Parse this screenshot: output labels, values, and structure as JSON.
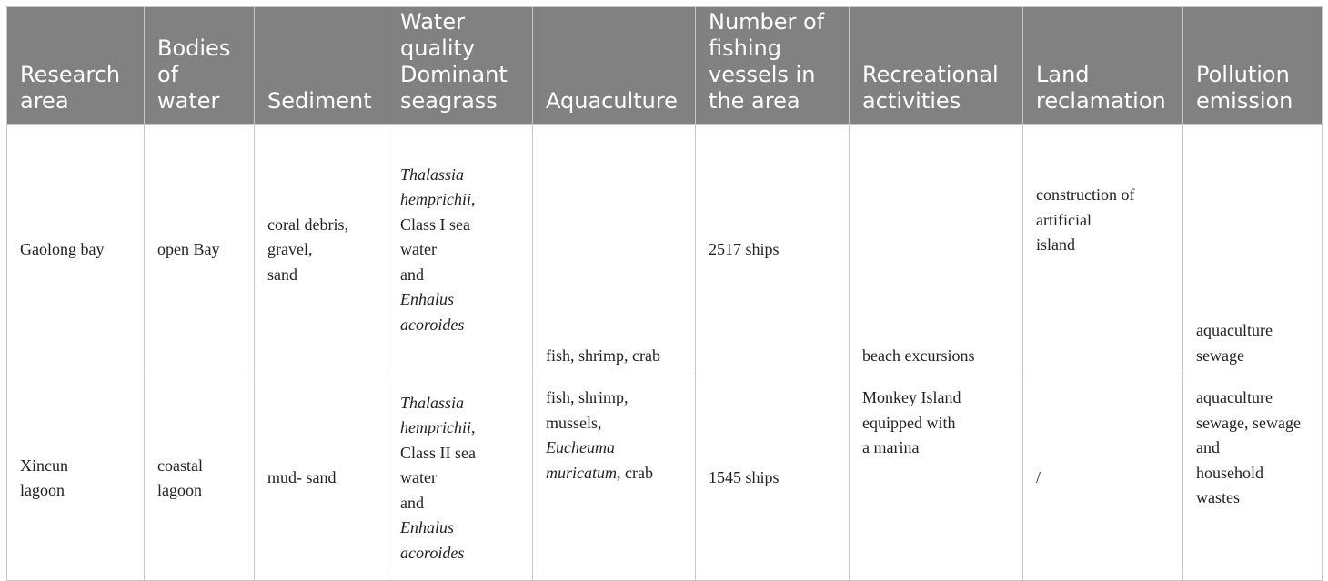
{
  "headers": [
    [
      "Research",
      "area"
    ],
    [
      "Bodies",
      "of",
      "water"
    ],
    [
      "Sediment"
    ],
    [
      "Water",
      "quality",
      "Dominant",
      "seagrass"
    ],
    [
      "Aquaculture"
    ],
    [
      "Number of",
      "fishing",
      "vessels in",
      "the area"
    ],
    [
      "Recreational",
      "activities"
    ],
    [
      "Land",
      "reclamation"
    ],
    [
      "Pollution",
      "emission"
    ]
  ],
  "rows": [
    {
      "research_area": [
        "Gaolong bay"
      ],
      "bodies_of_water": [
        "open Bay"
      ],
      "sediment": [
        "coral debris,",
        "gravel,",
        "sand"
      ],
      "seagrass": {
        "species1": [
          "Thalassia",
          "hemprichii"
        ],
        "species1_suffix": ",",
        "middle": [
          "Class I sea",
          "water",
          "and"
        ],
        "species2": [
          "Enhalus",
          "acoroides"
        ]
      },
      "aquaculture": [
        "fish, shrimp, crab"
      ],
      "vessels": [
        "2517 ships"
      ],
      "recreation": [
        "beach excursions"
      ],
      "reclamation": [
        "construction of",
        "artificial",
        "island"
      ],
      "pollution": [
        "aquaculture",
        "sewage"
      ]
    },
    {
      "research_area": [
        "Xincun",
        "lagoon"
      ],
      "bodies_of_water": [
        "coastal",
        "lagoon"
      ],
      "sediment": [
        "mud- sand"
      ],
      "seagrass": {
        "species1": [
          "Thalassia",
          "hemprichii"
        ],
        "species1_suffix": ",",
        "middle": [
          "Class II sea",
          "water",
          "and"
        ],
        "species2": [
          "Enhalus",
          "acoroides"
        ]
      },
      "aquaculture": {
        "line1": "fish, shrimp,",
        "line2": "mussels,",
        "italic1": "Eucheuma",
        "italic2": "muricatum",
        "suffix": ", crab"
      },
      "vessels": [
        "1545 ships"
      ],
      "recreation": [
        "Monkey Island",
        "equipped with",
        "a marina"
      ],
      "reclamation": [
        "/"
      ],
      "pollution": [
        "aquaculture",
        "sewage, sewage",
        "and",
        "household",
        "wastes"
      ]
    }
  ]
}
